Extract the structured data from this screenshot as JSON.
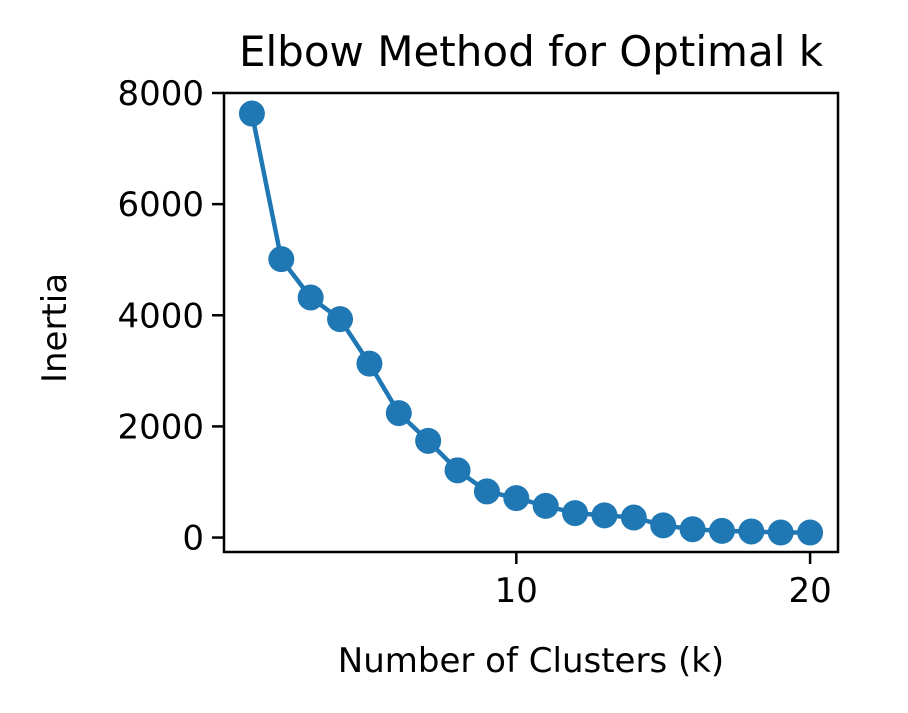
{
  "chart_data": {
    "type": "line",
    "title": "Elbow Method for Optimal k",
    "xlabel": "Number of Clusters (k)",
    "ylabel": "Inertia",
    "xlim": [
      0.05,
      20.95
    ],
    "ylim": [
      -260,
      8000
    ],
    "xticks": [
      10,
      20
    ],
    "xtick_labels": [
      "10",
      "20"
    ],
    "yticks": [
      0,
      2000,
      4000,
      6000,
      8000
    ],
    "ytick_labels": [
      "0",
      "2000",
      "4000",
      "6000",
      "8000"
    ],
    "grid": false,
    "legend": "none",
    "color": "#1f77b4",
    "marker": "circle",
    "x": [
      1,
      2,
      3,
      4,
      5,
      6,
      7,
      8,
      9,
      10,
      11,
      12,
      13,
      14,
      15,
      16,
      17,
      18,
      19,
      20
    ],
    "y": [
      7630,
      5010,
      4320,
      3930,
      3130,
      2240,
      1740,
      1210,
      830,
      710,
      570,
      440,
      400,
      360,
      220,
      150,
      120,
      110,
      90,
      90
    ]
  }
}
